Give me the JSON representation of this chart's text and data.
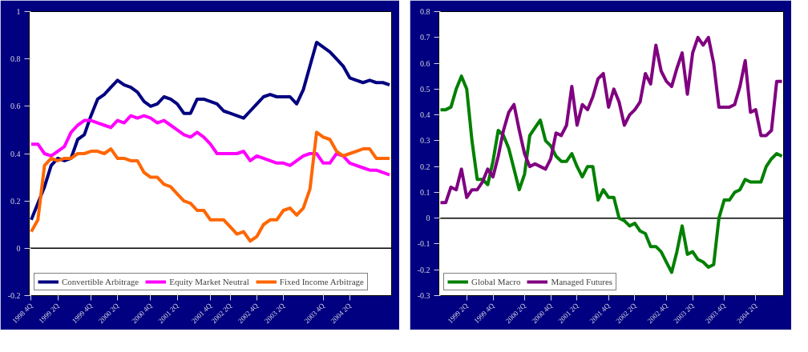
{
  "chart_data": [
    {
      "type": "line",
      "categories": [
        "1998 4Q",
        null,
        null,
        null,
        "1999 2Q",
        null,
        null,
        null,
        null,
        "1999 4Q",
        null,
        null,
        null,
        "2000 2Q",
        null,
        null,
        null,
        null,
        "2000 4Q",
        null,
        null,
        null,
        "2001 2Q",
        null,
        null,
        null,
        null,
        "2001 4Q",
        null,
        null,
        "2002 2Q",
        null,
        null,
        null,
        "2002 4Q",
        null,
        null,
        null,
        "2003 2Q",
        null,
        null,
        null,
        null,
        null,
        "2003 4Q",
        null,
        null,
        null,
        "2004 2Q",
        null,
        null,
        null,
        null,
        null,
        null
      ],
      "series": [
        {
          "name": "Convertible Arbitrage",
          "color": "#000080",
          "values": [
            0.12,
            0.19,
            0.26,
            0.35,
            0.38,
            0.37,
            0.38,
            0.46,
            0.48,
            0.56,
            0.63,
            0.65,
            0.68,
            0.71,
            0.69,
            0.68,
            0.66,
            0.62,
            0.6,
            0.61,
            0.64,
            0.63,
            0.61,
            0.57,
            0.57,
            0.63,
            0.63,
            0.62,
            0.61,
            0.58,
            0.57,
            0.56,
            0.55,
            0.58,
            0.61,
            0.64,
            0.65,
            0.64,
            0.64,
            0.64,
            0.61,
            0.67,
            0.77,
            0.87,
            0.85,
            0.83,
            0.8,
            0.77,
            0.72,
            0.71,
            0.7,
            0.71,
            0.7,
            0.7,
            0.69
          ]
        },
        {
          "name": "Equity Market Neutral",
          "color": "#ff00ff",
          "values": [
            0.44,
            0.44,
            0.4,
            0.39,
            0.41,
            0.43,
            0.49,
            0.52,
            0.54,
            0.54,
            0.53,
            0.52,
            0.51,
            0.54,
            0.53,
            0.56,
            0.55,
            0.56,
            0.55,
            0.53,
            0.54,
            0.52,
            0.5,
            0.48,
            0.47,
            0.49,
            0.47,
            0.44,
            0.4,
            0.4,
            0.4,
            0.4,
            0.41,
            0.37,
            0.39,
            0.38,
            0.37,
            0.36,
            0.36,
            0.35,
            0.37,
            0.39,
            0.4,
            0.4,
            0.36,
            0.36,
            0.4,
            0.39,
            0.36,
            0.35,
            0.34,
            0.33,
            0.33,
            0.32,
            0.31
          ]
        },
        {
          "name": "Fixed Income Arbitrage",
          "color": "#ff6600",
          "values": [
            0.07,
            0.12,
            0.35,
            0.38,
            0.37,
            0.38,
            0.38,
            0.4,
            0.4,
            0.41,
            0.41,
            0.4,
            0.42,
            0.38,
            0.38,
            0.37,
            0.37,
            0.32,
            0.3,
            0.3,
            0.27,
            0.26,
            0.23,
            0.2,
            0.19,
            0.16,
            0.16,
            0.12,
            0.12,
            0.12,
            0.09,
            0.06,
            0.07,
            0.03,
            0.05,
            0.1,
            0.12,
            0.12,
            0.16,
            0.17,
            0.14,
            0.17,
            0.25,
            0.49,
            0.47,
            0.46,
            0.41,
            0.39,
            0.4,
            0.41,
            0.42,
            0.42,
            0.38,
            0.38,
            0.38
          ]
        }
      ],
      "ylim": [
        -0.2,
        1
      ],
      "yticks": [
        -0.2,
        0,
        0.2,
        0.4,
        0.6,
        0.8,
        1
      ],
      "ref_lines": [
        {
          "axis": "y",
          "value": 0,
          "color": "#000000"
        }
      ],
      "grid": false,
      "legend": "bottom",
      "line_style": "solid"
    },
    {
      "type": "line",
      "categories": [
        null,
        null,
        null,
        null,
        null,
        "1999 2Q",
        null,
        null,
        null,
        null,
        "1999 4Q",
        null,
        null,
        null,
        null,
        null,
        "2000 2Q",
        null,
        null,
        null,
        null,
        "2000 4Q",
        null,
        null,
        null,
        null,
        "2001 2Q",
        null,
        null,
        null,
        null,
        null,
        "2001 4Q",
        null,
        null,
        null,
        null,
        "2002 2Q",
        null,
        null,
        null,
        null,
        null,
        "2002 4Q",
        null,
        null,
        null,
        null,
        "2003 2Q",
        null,
        null,
        null,
        null,
        null,
        "2003 4Q",
        null,
        null,
        null,
        null,
        null,
        "2004 2Q",
        null,
        null,
        null,
        null,
        null
      ],
      "series": [
        {
          "name": "Global Macro",
          "color": "#008000",
          "values": [
            0.42,
            0.42,
            0.43,
            0.5,
            0.55,
            0.5,
            0.3,
            0.15,
            0.15,
            0.13,
            0.22,
            0.34,
            0.32,
            0.27,
            0.19,
            0.11,
            0.17,
            0.32,
            0.35,
            0.38,
            0.3,
            0.28,
            0.24,
            0.22,
            0.22,
            0.25,
            0.2,
            0.16,
            0.2,
            0.2,
            0.07,
            0.11,
            0.08,
            0.08,
            0.0,
            -0.01,
            -0.03,
            -0.02,
            -0.05,
            -0.06,
            -0.11,
            -0.11,
            -0.13,
            -0.17,
            -0.21,
            -0.13,
            -0.03,
            -0.14,
            -0.13,
            -0.16,
            -0.17,
            -0.19,
            -0.18,
            0.0,
            0.07,
            0.07,
            0.1,
            0.11,
            0.15,
            0.14,
            0.14,
            0.14,
            0.2,
            0.23,
            0.25,
            0.24
          ]
        },
        {
          "name": "Managed Futures",
          "color": "#800080",
          "values": [
            0.06,
            0.06,
            0.12,
            0.11,
            0.19,
            0.08,
            0.11,
            0.11,
            0.14,
            0.19,
            0.16,
            0.24,
            0.34,
            0.41,
            0.44,
            0.34,
            0.25,
            0.2,
            0.21,
            0.2,
            0.19,
            0.23,
            0.33,
            0.32,
            0.36,
            0.51,
            0.36,
            0.44,
            0.42,
            0.47,
            0.54,
            0.56,
            0.43,
            0.5,
            0.45,
            0.36,
            0.4,
            0.42,
            0.45,
            0.56,
            0.52,
            0.67,
            0.57,
            0.53,
            0.51,
            0.58,
            0.64,
            0.48,
            0.64,
            0.7,
            0.67,
            0.7,
            0.6,
            0.43,
            0.43,
            0.43,
            0.44,
            0.51,
            0.61,
            0.41,
            0.42,
            0.32,
            0.32,
            0.34,
            0.53,
            0.53
          ]
        }
      ],
      "ylim": [
        -0.3,
        0.8
      ],
      "yticks": [
        -0.3,
        -0.2,
        -0.1,
        0,
        0.1,
        0.2,
        0.3,
        0.4,
        0.5,
        0.6,
        0.7,
        0.8
      ],
      "ref_lines": [
        {
          "axis": "y",
          "value": 0,
          "color": "#000000"
        }
      ],
      "grid": false,
      "legend": "bottom",
      "line_style": "solid"
    }
  ]
}
